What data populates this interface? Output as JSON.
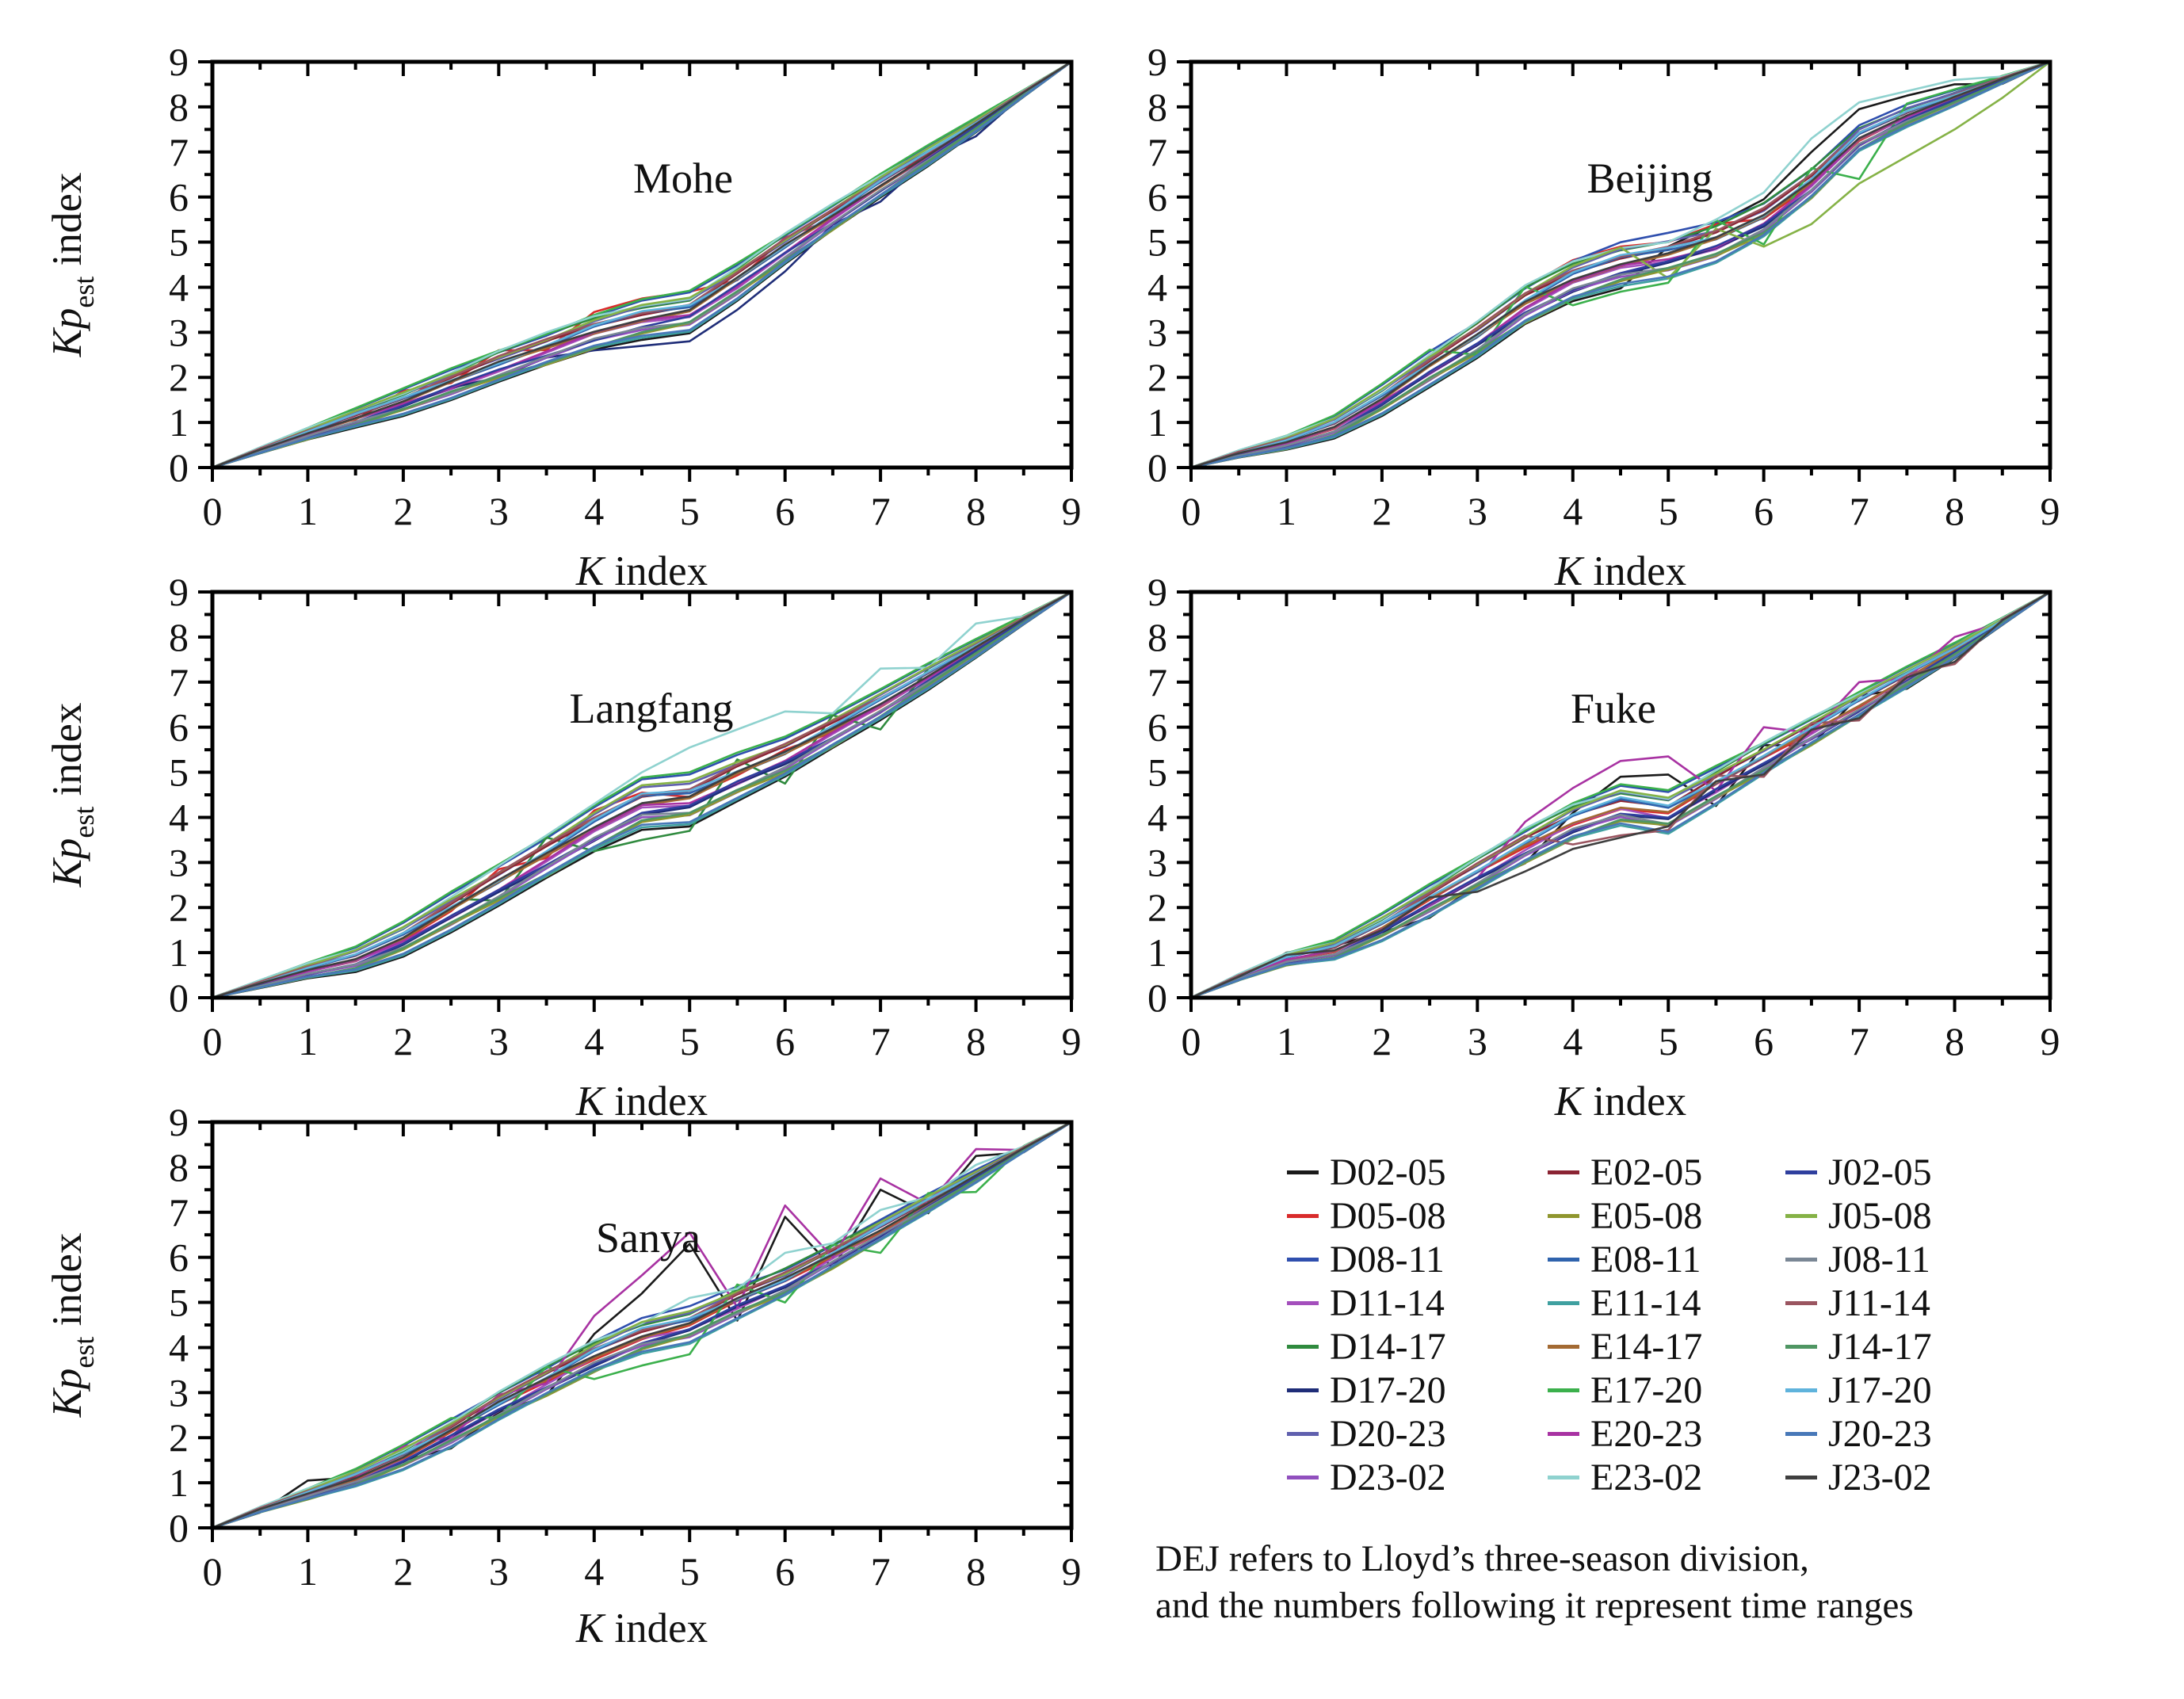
{
  "figure": {
    "background": "#ffffff",
    "caption": {
      "line1": "DEJ refers to Lloyd’s three-season division,",
      "line2": "and the numbers following it represent time ranges"
    },
    "axis": {
      "x_main": "K",
      "x_rest": " index",
      "y_main": "Kp",
      "y_sub": "est",
      "y_rest": " index"
    }
  },
  "legend": {
    "columns": [
      {
        "entries": [
          {
            "label": "D02-05",
            "color": "#1a1a1a"
          },
          {
            "label": "D05-08",
            "color": "#d92b2b"
          },
          {
            "label": "D08-11",
            "color": "#2f4fae"
          },
          {
            "label": "D11-14",
            "color": "#a44fbc"
          },
          {
            "label": "D14-17",
            "color": "#2f8a3e"
          },
          {
            "label": "D17-20",
            "color": "#1f2d78"
          },
          {
            "label": "D20-23",
            "color": "#6060ae"
          },
          {
            "label": "D23-02",
            "color": "#9150be"
          }
        ]
      },
      {
        "entries": [
          {
            "label": "E02-05",
            "color": "#8b2433"
          },
          {
            "label": "E05-08",
            "color": "#8f962e"
          },
          {
            "label": "E08-11",
            "color": "#2f63ad"
          },
          {
            "label": "E11-14",
            "color": "#3fa0a0"
          },
          {
            "label": "E14-17",
            "color": "#a36a33"
          },
          {
            "label": "E17-20",
            "color": "#3bb04c"
          },
          {
            "label": "E20-23",
            "color": "#a832a2"
          },
          {
            "label": "E23-02",
            "color": "#8fd2cf"
          }
        ]
      },
      {
        "entries": [
          {
            "label": "J02-05",
            "color": "#2f3f9e"
          },
          {
            "label": "J05-08",
            "color": "#85b246"
          },
          {
            "label": "J08-11",
            "color": "#7a8795"
          },
          {
            "label": "J11-14",
            "color": "#9a5560"
          },
          {
            "label": "J14-17",
            "color": "#4f9663"
          },
          {
            "label": "J17-20",
            "color": "#5fb3dc"
          },
          {
            "label": "J20-23",
            "color": "#4878b8"
          },
          {
            "label": "J23-02",
            "color": "#3f3f3f"
          }
        ]
      }
    ]
  },
  "chart_data": [
    {
      "type": "line",
      "title": "Mohe",
      "xlabel": "K index",
      "ylabel": "Kp_est index",
      "xlim": [
        0,
        9
      ],
      "ylim": [
        0,
        9
      ],
      "xticks": [
        0,
        1,
        2,
        3,
        4,
        5,
        6,
        7,
        8,
        9
      ],
      "yticks": [
        0,
        1,
        2,
        3,
        4,
        5,
        6,
        7,
        8,
        9
      ],
      "n_series": 24,
      "x": [
        0,
        0.5,
        1,
        1.5,
        2,
        2.5,
        3,
        3.5,
        4,
        4.5,
        5,
        5.5,
        6,
        6.5,
        7,
        7.5,
        8,
        8.5,
        9
      ],
      "median_y": [
        0,
        0.38,
        0.75,
        1.1,
        1.45,
        1.85,
        2.25,
        2.62,
        3.0,
        3.28,
        3.45,
        4.12,
        4.85,
        5.55,
        6.25,
        6.92,
        7.6,
        8.3,
        9
      ],
      "band_halfwidth_max": 0.42,
      "series_overrides": {
        "D05-08": {
          "1": 0.85,
          "2": 1.7,
          "3": 2.6,
          "4": 3.45,
          "4.5": 3.75,
          "5": 3.9,
          "6": 5.1,
          "7": 6.4
        },
        "D17-20": {
          "3": 2.0,
          "4": 2.6,
          "4.5": 2.7,
          "5": 2.8,
          "5.5": 3.5,
          "6": 4.35,
          "7": 5.9,
          "8": 7.35
        }
      }
    },
    {
      "type": "line",
      "title": "Beijing",
      "xlabel": "K index",
      "ylabel": "",
      "xlim": [
        0,
        9
      ],
      "ylim": [
        0,
        9
      ],
      "xticks": [
        0,
        1,
        2,
        3,
        4,
        5,
        6,
        7,
        8,
        9
      ],
      "yticks": [
        0,
        1,
        2,
        3,
        4,
        5,
        6,
        7,
        8,
        9
      ],
      "n_series": 24,
      "x": [
        0,
        0.5,
        1,
        1.5,
        2,
        2.5,
        3,
        3.5,
        4,
        4.5,
        5,
        5.5,
        6,
        6.5,
        7,
        7.5,
        8,
        8.5,
        9
      ],
      "median_y": [
        0,
        0.3,
        0.55,
        0.9,
        1.5,
        2.2,
        2.85,
        3.6,
        4.15,
        4.5,
        4.7,
        5.0,
        5.5,
        6.3,
        7.3,
        7.8,
        8.2,
        8.6,
        9
      ],
      "band_halfwidth_max": 0.5,
      "series_overrides": {
        "E23-02": {
          "5": 5.0,
          "5.5": 5.5,
          "6": 6.1,
          "6.5": 7.3,
          "7": 8.1,
          "7.5": 8.35,
          "8": 8.6
        },
        "D02-05": {
          "5": 4.9,
          "5.5": 5.4,
          "6": 5.95,
          "6.5": 7.0,
          "7": 7.95,
          "7.5": 8.25,
          "8": 8.5
        },
        "D05-08": {
          "2.5": 2.5,
          "3": 3.2,
          "3.5": 4.0,
          "4": 4.6,
          "4.5": 4.9,
          "5": 5.0,
          "5.5": 5.4
        },
        "J05-08": {
          "5": 4.2,
          "6": 4.9,
          "6.5": 5.4,
          "7": 6.3,
          "7.5": 6.9,
          "8": 7.5,
          "8.5": 8.2
        },
        "E17-20": {
          "3": 2.5,
          "4": 3.6,
          "4.5": 3.9,
          "5": 4.1,
          "6": 4.95,
          "7": 6.4
        }
      }
    },
    {
      "type": "line",
      "title": "Langfang",
      "xlabel": "K index",
      "ylabel": "Kp_est index",
      "xlim": [
        0,
        9
      ],
      "ylim": [
        0,
        9
      ],
      "xticks": [
        0,
        1,
        2,
        3,
        4,
        5,
        6,
        7,
        8,
        9
      ],
      "yticks": [
        0,
        1,
        2,
        3,
        4,
        5,
        6,
        7,
        8,
        9
      ],
      "n_series": 24,
      "x": [
        0,
        0.5,
        1,
        1.5,
        2,
        2.5,
        3,
        3.5,
        4,
        4.5,
        5,
        5.5,
        6,
        6.5,
        7,
        7.5,
        8,
        8.5,
        9
      ],
      "median_y": [
        0,
        0.3,
        0.6,
        0.85,
        1.3,
        1.9,
        2.5,
        3.12,
        3.75,
        4.3,
        4.4,
        4.9,
        5.35,
        5.92,
        6.5,
        7.12,
        7.75,
        8.38,
        9
      ],
      "band_halfwidth_max": 0.55,
      "series_overrides": {
        "E23-02": {
          "3.5": 3.6,
          "4": 4.3,
          "4.5": 5.0,
          "5": 5.55,
          "5.5": 5.95,
          "6": 6.35,
          "7": 7.3,
          "8": 8.3
        },
        "D05-08": {
          "3": 2.85,
          "4": 4.15,
          "4.5": 4.55,
          "5": 4.45,
          "6": 5.5
        },
        "D14-17": {
          "3": 2.15,
          "4": 3.25,
          "4.5": 3.5,
          "5": 3.7,
          "6": 4.75,
          "7": 5.95
        }
      }
    },
    {
      "type": "line",
      "title": "Fuke",
      "xlabel": "K index",
      "ylabel": "",
      "xlim": [
        0,
        9
      ],
      "ylim": [
        0,
        9
      ],
      "xticks": [
        0,
        1,
        2,
        3,
        4,
        5,
        6,
        7,
        8,
        9
      ],
      "yticks": [
        0,
        1,
        2,
        3,
        4,
        5,
        6,
        7,
        8,
        9
      ],
      "n_series": 24,
      "x": [
        0,
        0.5,
        1,
        1.5,
        2,
        2.5,
        3,
        3.5,
        4,
        4.5,
        5,
        5.5,
        6,
        6.5,
        7,
        7.5,
        8,
        8.5,
        9
      ],
      "median_y": [
        0,
        0.45,
        0.85,
        1.05,
        1.55,
        2.15,
        2.75,
        3.35,
        3.9,
        4.25,
        4.1,
        4.7,
        5.3,
        5.9,
        6.5,
        7.1,
        7.7,
        8.35,
        9
      ],
      "band_halfwidth_max": 0.45,
      "series_overrides": {
        "E20-23": {
          "3.5": 3.9,
          "4": 4.65,
          "4.5": 5.25,
          "5": 5.35,
          "6": 6.0,
          "7": 7.0,
          "8": 8.0
        },
        "D02-05": {
          "1": 1.0,
          "1.5": 1.15,
          "2": 1.45,
          "3": 2.5,
          "4": 4.1,
          "4.5": 4.9,
          "5": 4.95,
          "6": 5.6,
          "7": 6.7
        },
        "J23-02": {
          "1": 0.95,
          "2": 1.5,
          "3": 2.35,
          "3.5": 2.8,
          "4": 3.3,
          "4.5": 3.55,
          "5": 3.8,
          "6": 4.95,
          "7": 6.2,
          "8": 7.45
        },
        "J11-14": {
          "4": 3.4,
          "4.5": 3.6,
          "5": 3.72,
          "6": 4.9,
          "7": 6.15,
          "8": 7.4
        }
      }
    },
    {
      "type": "line",
      "title": "Sanya",
      "xlabel": "K index",
      "ylabel": "Kp_est index",
      "xlim": [
        0,
        9
      ],
      "ylim": [
        0,
        9
      ],
      "xticks": [
        0,
        1,
        2,
        3,
        4,
        5,
        6,
        7,
        8,
        9
      ],
      "yticks": [
        0,
        1,
        2,
        3,
        4,
        5,
        6,
        7,
        8,
        9
      ],
      "n_series": 24,
      "x": [
        0,
        0.5,
        1,
        1.5,
        2,
        2.5,
        3,
        3.5,
        4,
        4.5,
        5,
        5.5,
        6,
        6.5,
        7,
        7.5,
        8,
        8.5,
        9
      ],
      "median_y": [
        0,
        0.4,
        0.75,
        1.1,
        1.55,
        2.1,
        2.7,
        3.25,
        3.8,
        4.25,
        4.5,
        5.0,
        5.45,
        6.02,
        6.6,
        7.2,
        7.8,
        8.4,
        9
      ],
      "band_halfwidth_max": 0.4,
      "series_overrides": {
        "E20-23": {
          "2": 1.8,
          "3": 2.95,
          "4": 4.7,
          "4.5": 5.6,
          "5": 6.55,
          "6": 7.15,
          "7": 7.75,
          "8": 8.4
        },
        "D02-05": {
          "1": 1.05,
          "1.5": 1.12,
          "2": 1.5,
          "3": 2.55,
          "4": 4.3,
          "4.5": 5.2,
          "5": 6.3,
          "6": 6.9,
          "7": 7.5,
          "8": 8.25
        },
        "E23-02": {
          "4": 4.15,
          "5": 5.1,
          "6": 6.1,
          "7": 7.05,
          "8": 8.05
        },
        "E17-20": {
          "3": 2.45,
          "4": 3.3,
          "4.5": 3.6,
          "5": 3.85,
          "6": 5.0,
          "7": 6.1,
          "8": 7.45
        }
      }
    }
  ]
}
